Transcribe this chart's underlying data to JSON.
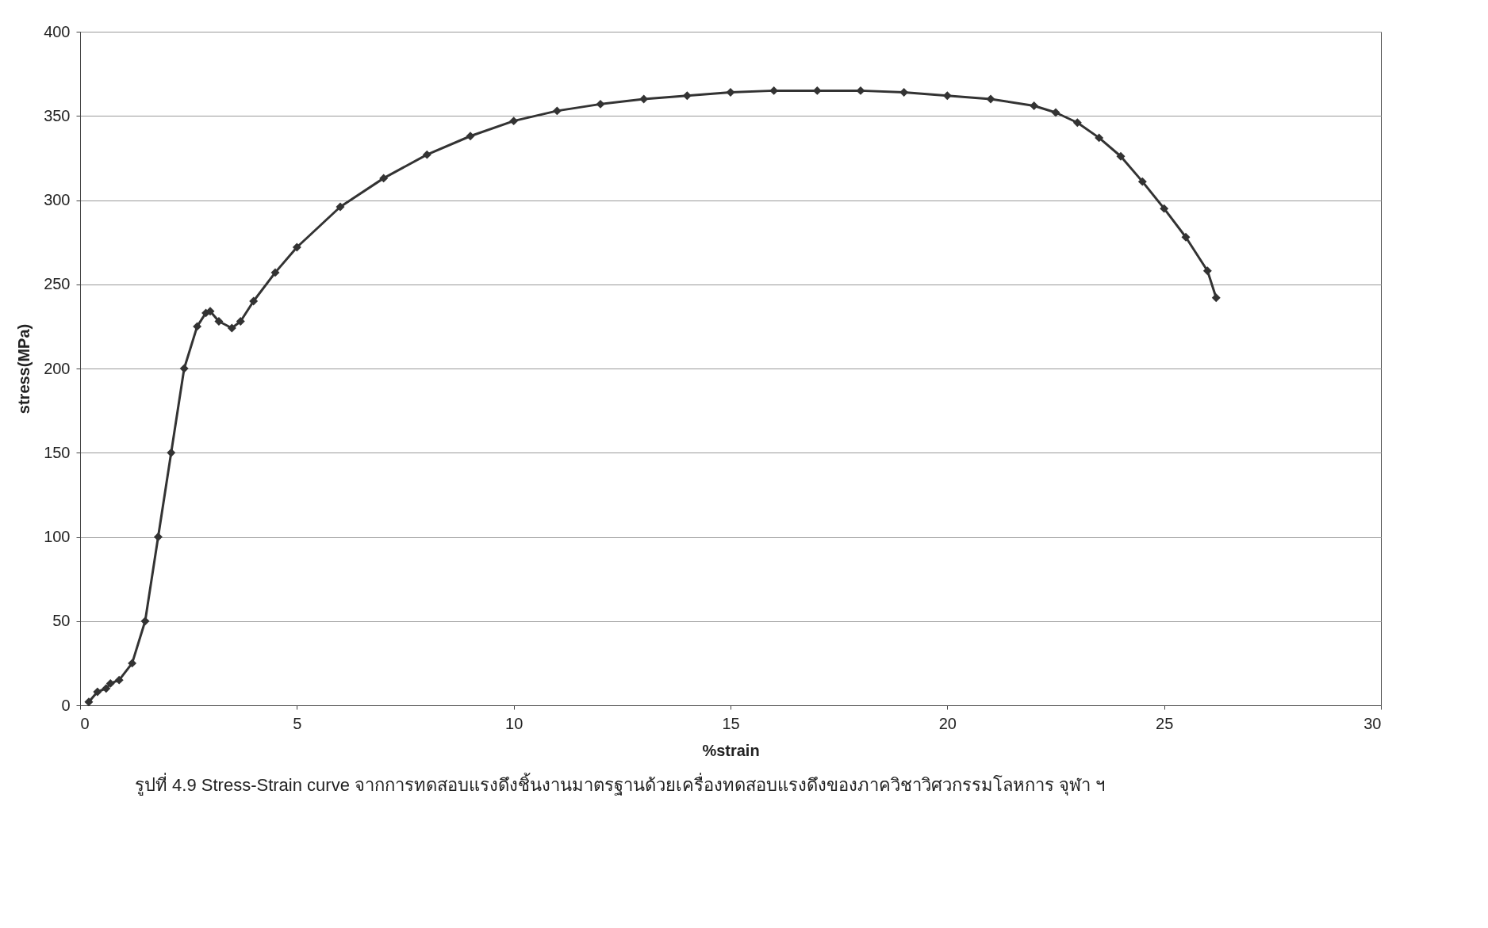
{
  "chart_data": {
    "type": "line",
    "xlabel": "%strain",
    "ylabel": "stress(MPa)",
    "annotations": [
      "รูปที่ 4.9 Stress-Strain curve จากการทดสอบแรงดึงชิ้นงานมาตรฐานด้วยเครื่องทดสอบแรงดึงของภาควิชาวิศวกรรมโลหการ จุฬา ฯ"
    ],
    "xlim": [
      0,
      30
    ],
    "xticks": [
      0,
      5,
      10,
      15,
      20,
      25,
      30
    ],
    "ylim": [
      0,
      400
    ],
    "yticks": [
      0,
      50,
      100,
      150,
      200,
      250,
      300,
      350,
      400
    ],
    "grid": "y",
    "legend": false,
    "marker": "diamond",
    "line_style": "solid",
    "series": [
      {
        "color": "#333333",
        "x": [
          0.2,
          0.4,
          0.6,
          0.7,
          0.9,
          1.2,
          1.5,
          1.8,
          2.1,
          2.4,
          2.7,
          2.9,
          3.0,
          3.2,
          3.5,
          3.7,
          4.0,
          4.5,
          5,
          6,
          7,
          8,
          9,
          10,
          11,
          12,
          13,
          14,
          15,
          16,
          17,
          18,
          19,
          20,
          21,
          22,
          22.5,
          23,
          23.5,
          24,
          24.5,
          25,
          25.5,
          26,
          26.2
        ],
        "values": [
          2,
          8,
          10,
          13,
          15,
          25,
          50,
          100,
          150,
          200,
          225,
          233,
          234,
          228,
          224,
          228,
          240,
          257,
          272,
          296,
          313,
          327,
          338,
          347,
          353,
          357,
          360,
          362,
          364,
          365,
          365,
          365,
          364,
          362,
          360,
          356,
          352,
          346,
          337,
          326,
          311,
          295,
          278,
          258,
          242
        ]
      }
    ]
  }
}
